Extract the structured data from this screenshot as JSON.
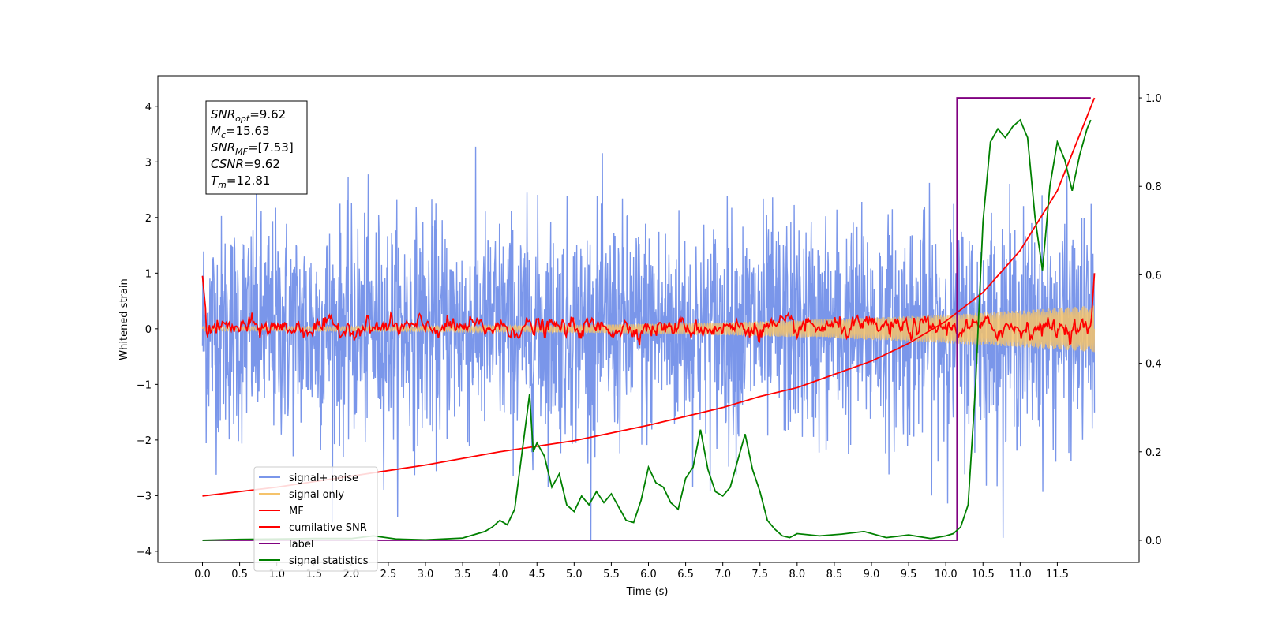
{
  "chart_data": {
    "type": "line",
    "xlabel": "Time (s)",
    "ylabel": "Whitened strain",
    "xlim": [
      -0.6,
      12.6
    ],
    "ylim_left": [
      -4.2,
      4.55
    ],
    "ylim_right": [
      -0.05,
      1.05
    ],
    "x_ticks": [
      0.0,
      0.5,
      1.0,
      1.5,
      2.0,
      2.5,
      3.0,
      3.5,
      4.0,
      4.5,
      5.0,
      5.5,
      6.0,
      6.5,
      7.0,
      7.5,
      8.0,
      8.5,
      9.0,
      9.5,
      10.0,
      10.5,
      11.0,
      11.5
    ],
    "x_tick_labels": [
      "0.0",
      "0.5",
      "1.0",
      "1.5",
      "2.0",
      "2.5",
      "3.0",
      "3.5",
      "4.0",
      "4.5",
      "5.0",
      "5.5",
      "6.0",
      "6.5",
      "7.0",
      "7.5",
      "8.0",
      "8.5",
      "9.0",
      "9.5",
      "10.0",
      "10.5",
      "11.0",
      "11.5"
    ],
    "y_ticks_left": [
      4,
      3,
      2,
      1,
      0,
      -1,
      -2,
      -3,
      -4
    ],
    "y_tick_labels_left": [
      "4",
      "3",
      "2",
      "1",
      "0",
      "−1",
      "−2",
      "−3",
      "−4"
    ],
    "y_ticks_right": [
      1.0,
      0.8,
      0.6,
      0.4,
      0.2,
      0.0
    ],
    "y_tick_labels_right": [
      "1.0",
      "0.8",
      "0.6",
      "0.4",
      "0.2",
      "0.0"
    ],
    "legend_placement": "lower-left",
    "annotation": {
      "lines": [
        {
          "name": "SNR",
          "sub": "opt",
          "value": "=9.62"
        },
        {
          "name": "M",
          "sub": "c",
          "value": "=15.63"
        },
        {
          "name": "SNR",
          "sub": "MF",
          "value": "=[7.53]"
        },
        {
          "name": "CSNR",
          "sub": "",
          "value": "=9.62"
        },
        {
          "name": "T",
          "sub": "m",
          "value": "=12.81"
        }
      ]
    },
    "series": [
      {
        "name": "signal+ noise",
        "color": "#4169e1",
        "axis": "left",
        "kind": "noise",
        "x_range": [
          0.0,
          12.0
        ],
        "value_range": [
          -3.8,
          4.1
        ],
        "spread_sd": 1.0
      },
      {
        "name": "signal only",
        "color": "#f5c36b",
        "axis": "left",
        "kind": "chirp",
        "x_range": [
          0.0,
          12.0
        ],
        "amplitude_start": 0.04,
        "amplitude_end": 0.42
      },
      {
        "name": "MF",
        "color": "#ff0000",
        "axis": "left",
        "kind": "filter-output",
        "x_range": [
          0.0,
          12.0
        ],
        "start_value": 0.95,
        "peak_value": 1.0,
        "typical_range": [
          -0.2,
          0.35
        ]
      },
      {
        "name": "cumilative SNR",
        "color": "#ff0000",
        "axis": "right",
        "x": [
          0.0,
          1.0,
          2.0,
          3.0,
          4.0,
          5.0,
          6.0,
          7.0,
          7.5,
          8.0,
          8.5,
          9.0,
          9.5,
          10.0,
          10.5,
          11.0,
          11.5,
          12.0
        ],
        "y": [
          0.1,
          0.12,
          0.145,
          0.17,
          0.2,
          0.225,
          0.26,
          0.3,
          0.325,
          0.345,
          0.375,
          0.405,
          0.445,
          0.495,
          0.56,
          0.655,
          0.79,
          1.0
        ]
      },
      {
        "name": "label",
        "color": "#800080",
        "axis": "right",
        "x": [
          0.0,
          10.15,
          10.15,
          11.95
        ],
        "y": [
          0.0,
          0.0,
          1.0,
          1.0
        ]
      },
      {
        "name": "signal statistics",
        "color": "#008000",
        "axis": "right",
        "x": [
          0.0,
          0.5,
          1.0,
          1.5,
          2.0,
          2.3,
          2.6,
          3.0,
          3.5,
          3.8,
          3.9,
          4.0,
          4.1,
          4.2,
          4.3,
          4.4,
          4.45,
          4.5,
          4.6,
          4.7,
          4.8,
          4.9,
          5.0,
          5.1,
          5.2,
          5.3,
          5.4,
          5.5,
          5.6,
          5.7,
          5.8,
          5.9,
          6.0,
          6.1,
          6.2,
          6.3,
          6.4,
          6.5,
          6.6,
          6.7,
          6.8,
          6.9,
          7.0,
          7.1,
          7.2,
          7.3,
          7.4,
          7.5,
          7.6,
          7.7,
          7.8,
          7.9,
          8.0,
          8.3,
          8.6,
          8.9,
          9.2,
          9.5,
          9.8,
          10.0,
          10.1,
          10.2,
          10.3,
          10.4,
          10.5,
          10.6,
          10.7,
          10.8,
          10.9,
          11.0,
          11.1,
          11.2,
          11.3,
          11.4,
          11.5,
          11.6,
          11.7,
          11.8,
          11.9,
          11.95
        ],
        "y": [
          0.0,
          0.002,
          0.003,
          0.004,
          0.004,
          0.01,
          0.003,
          0.001,
          0.005,
          0.02,
          0.03,
          0.045,
          0.035,
          0.07,
          0.2,
          0.33,
          0.2,
          0.22,
          0.19,
          0.12,
          0.15,
          0.08,
          0.065,
          0.1,
          0.08,
          0.11,
          0.085,
          0.105,
          0.075,
          0.045,
          0.04,
          0.09,
          0.165,
          0.13,
          0.12,
          0.085,
          0.07,
          0.14,
          0.165,
          0.25,
          0.16,
          0.11,
          0.1,
          0.12,
          0.18,
          0.24,
          0.16,
          0.11,
          0.045,
          0.025,
          0.01,
          0.006,
          0.015,
          0.01,
          0.014,
          0.02,
          0.006,
          0.012,
          0.004,
          0.01,
          0.015,
          0.03,
          0.08,
          0.35,
          0.72,
          0.9,
          0.93,
          0.91,
          0.935,
          0.95,
          0.91,
          0.73,
          0.61,
          0.8,
          0.9,
          0.86,
          0.79,
          0.87,
          0.93,
          0.95
        ]
      }
    ]
  }
}
